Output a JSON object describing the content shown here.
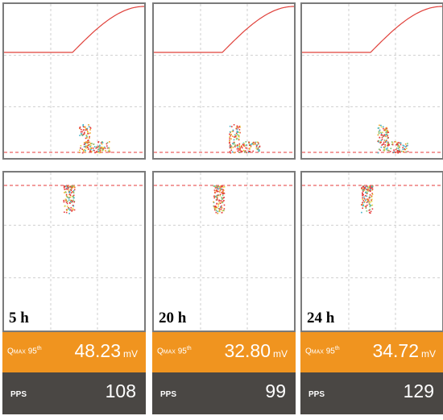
{
  "colors": {
    "orange": "#f0941f",
    "dark_gray": "#4a4744",
    "curve_red": "#e0403a",
    "dash_red": "#e63b3b"
  },
  "panels": [
    {
      "time_label": "5 h",
      "qmax": {
        "label": "Q",
        "label_sub": "MAX",
        "label_rest": "95",
        "label_sup": "th",
        "value": "48.23",
        "unit": "mV"
      },
      "pps": {
        "label": "PPS",
        "value": "108"
      }
    },
    {
      "time_label": "20 h",
      "qmax": {
        "label": "Q",
        "label_sub": "MAX",
        "label_rest": "95",
        "label_sup": "th",
        "value": "32.80",
        "unit": "mV"
      },
      "pps": {
        "label": "PPS",
        "value": "99"
      }
    },
    {
      "time_label": "24 h",
      "qmax": {
        "label": "Q",
        "label_sub": "MAX",
        "label_rest": "95",
        "label_sup": "th",
        "value": "34.72",
        "unit": "mV"
      },
      "pps": {
        "label": "PPS",
        "value": "129"
      }
    }
  ]
}
